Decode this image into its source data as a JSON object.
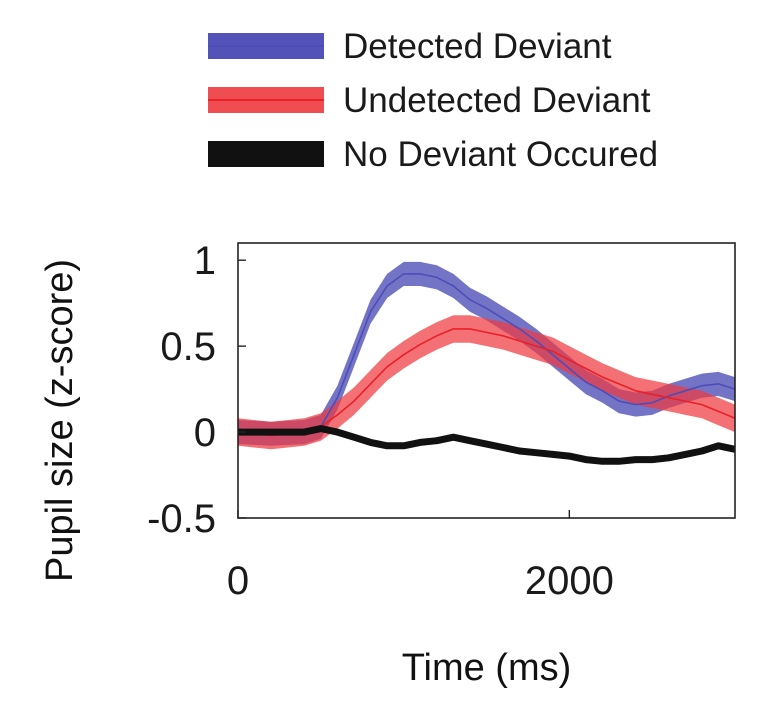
{
  "chart_data": {
    "type": "line",
    "xlabel": "Time (ms)",
    "ylabel": "Pupil size (z-score)",
    "xlim": [
      0,
      3000
    ],
    "ylim": [
      -0.5,
      1.1
    ],
    "xticks": [
      0,
      2000
    ],
    "xtick_labels": [
      "0",
      "2000"
    ],
    "yticks": [
      -0.5,
      0,
      0.5,
      1
    ],
    "ytick_labels": [
      "-0.5",
      "0",
      "0.5",
      "1"
    ],
    "grid": false,
    "legend_position": "above",
    "x": [
      0,
      200,
      400,
      500,
      600,
      700,
      800,
      900,
      1000,
      1100,
      1200,
      1300,
      1400,
      1500,
      1600,
      1700,
      1800,
      1900,
      2000,
      2100,
      2200,
      2300,
      2400,
      2500,
      2600,
      2700,
      2800,
      2900,
      3000
    ],
    "series": [
      {
        "name": "Detected Deviant",
        "color": "#4d4db8",
        "band_color": "#3f3fb0",
        "y": [
          0.0,
          -0.01,
          0.0,
          0.03,
          0.2,
          0.45,
          0.7,
          0.85,
          0.92,
          0.92,
          0.9,
          0.85,
          0.77,
          0.72,
          0.66,
          0.6,
          0.53,
          0.45,
          0.37,
          0.29,
          0.24,
          0.18,
          0.16,
          0.17,
          0.21,
          0.24,
          0.27,
          0.28,
          0.25
        ],
        "err": 0.07
      },
      {
        "name": "Undetected Deviant",
        "color": "#e8202a",
        "band_color": "#ee3a40",
        "y": [
          0.0,
          -0.02,
          0.0,
          0.03,
          0.1,
          0.18,
          0.28,
          0.38,
          0.45,
          0.51,
          0.56,
          0.6,
          0.6,
          0.58,
          0.56,
          0.53,
          0.5,
          0.47,
          0.42,
          0.37,
          0.32,
          0.28,
          0.24,
          0.22,
          0.2,
          0.18,
          0.16,
          0.12,
          0.08
        ],
        "err": 0.08
      },
      {
        "name": "No Deviant Occured",
        "color": "#111111",
        "band_color": "#111111",
        "y": [
          0.0,
          0.0,
          0.0,
          0.02,
          0.0,
          -0.03,
          -0.06,
          -0.08,
          -0.08,
          -0.06,
          -0.05,
          -0.03,
          -0.05,
          -0.07,
          -0.09,
          -0.11,
          -0.12,
          -0.13,
          -0.14,
          -0.16,
          -0.17,
          -0.17,
          -0.16,
          -0.16,
          -0.15,
          -0.13,
          -0.11,
          -0.08,
          -0.1
        ],
        "err": 0.015
      }
    ]
  }
}
